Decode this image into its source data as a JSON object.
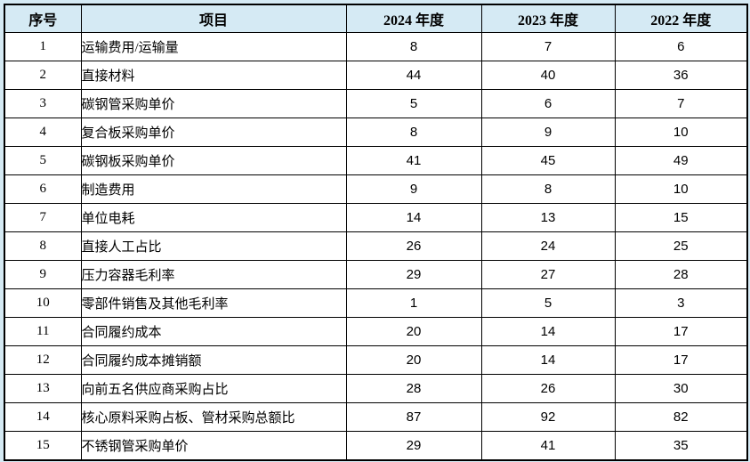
{
  "colors": {
    "page_background": "#d5eaf4",
    "header_background": "#d5eaf4",
    "border": "#000000",
    "body_background": "#ffffff",
    "text": "#000000"
  },
  "table": {
    "columns": [
      {
        "key": "index",
        "label": "序号"
      },
      {
        "key": "item",
        "label": "项目"
      },
      {
        "key": "y2024",
        "label": "2024 年度"
      },
      {
        "key": "y2023",
        "label": "2023 年度"
      },
      {
        "key": "y2022",
        "label": "2022 年度"
      }
    ],
    "rows": [
      {
        "index": "1",
        "item": "运输费用/运输量",
        "y2024": "8",
        "y2023": "7",
        "y2022": "6"
      },
      {
        "index": "2",
        "item": "直接材料",
        "y2024": "44",
        "y2023": "40",
        "y2022": "36"
      },
      {
        "index": "3",
        "item": "碳钢管采购单价",
        "y2024": "5",
        "y2023": "6",
        "y2022": "7"
      },
      {
        "index": "4",
        "item": "复合板采购单价",
        "y2024": "8",
        "y2023": "9",
        "y2022": "10"
      },
      {
        "index": "5",
        "item": "碳钢板采购单价",
        "y2024": "41",
        "y2023": "45",
        "y2022": "49"
      },
      {
        "index": "6",
        "item": "制造费用",
        "y2024": "9",
        "y2023": "8",
        "y2022": "10"
      },
      {
        "index": "7",
        "item": "单位电耗",
        "y2024": "14",
        "y2023": "13",
        "y2022": "15"
      },
      {
        "index": "8",
        "item": "直接人工占比",
        "y2024": "26",
        "y2023": "24",
        "y2022": "25"
      },
      {
        "index": "9",
        "item": "压力容器毛利率",
        "y2024": "29",
        "y2023": "27",
        "y2022": "28"
      },
      {
        "index": "10",
        "item": "零部件销售及其他毛利率",
        "y2024": "1",
        "y2023": "5",
        "y2022": "3"
      },
      {
        "index": "11",
        "item": "合同履约成本",
        "y2024": "20",
        "y2023": "14",
        "y2022": "17"
      },
      {
        "index": "12",
        "item": "合同履约成本摊销额",
        "y2024": "20",
        "y2023": "14",
        "y2022": "17"
      },
      {
        "index": "13",
        "item": "向前五名供应商采购占比",
        "y2024": "28",
        "y2023": "26",
        "y2022": "30"
      },
      {
        "index": "14",
        "item": "核心原料采购占板、管材采购总额比",
        "y2024": "87",
        "y2023": "92",
        "y2022": "82"
      },
      {
        "index": "15",
        "item": "不锈钢管采购单价",
        "y2024": "29",
        "y2023": "41",
        "y2022": "35"
      }
    ]
  },
  "chart_data": {
    "type": "table",
    "title": "",
    "categories": [
      "运输费用/运输量",
      "直接材料",
      "碳钢管采购单价",
      "复合板采购单价",
      "碳钢板采购单价",
      "制造费用",
      "单位电耗",
      "直接人工占比",
      "压力容器毛利率",
      "零部件销售及其他毛利率",
      "合同履约成本",
      "合同履约成本摊销额",
      "向前五名供应商采购占比",
      "核心原料采购占板、管材采购总额比",
      "不锈钢管采购单价"
    ],
    "series": [
      {
        "name": "2024 年度",
        "values": [
          8,
          44,
          5,
          8,
          41,
          9,
          14,
          26,
          29,
          1,
          20,
          20,
          28,
          87,
          29
        ]
      },
      {
        "name": "2023 年度",
        "values": [
          7,
          40,
          6,
          9,
          45,
          8,
          13,
          24,
          27,
          5,
          14,
          14,
          26,
          92,
          41
        ]
      },
      {
        "name": "2022 年度",
        "values": [
          6,
          36,
          7,
          10,
          49,
          10,
          15,
          25,
          28,
          3,
          17,
          17,
          30,
          82,
          35
        ]
      }
    ]
  }
}
